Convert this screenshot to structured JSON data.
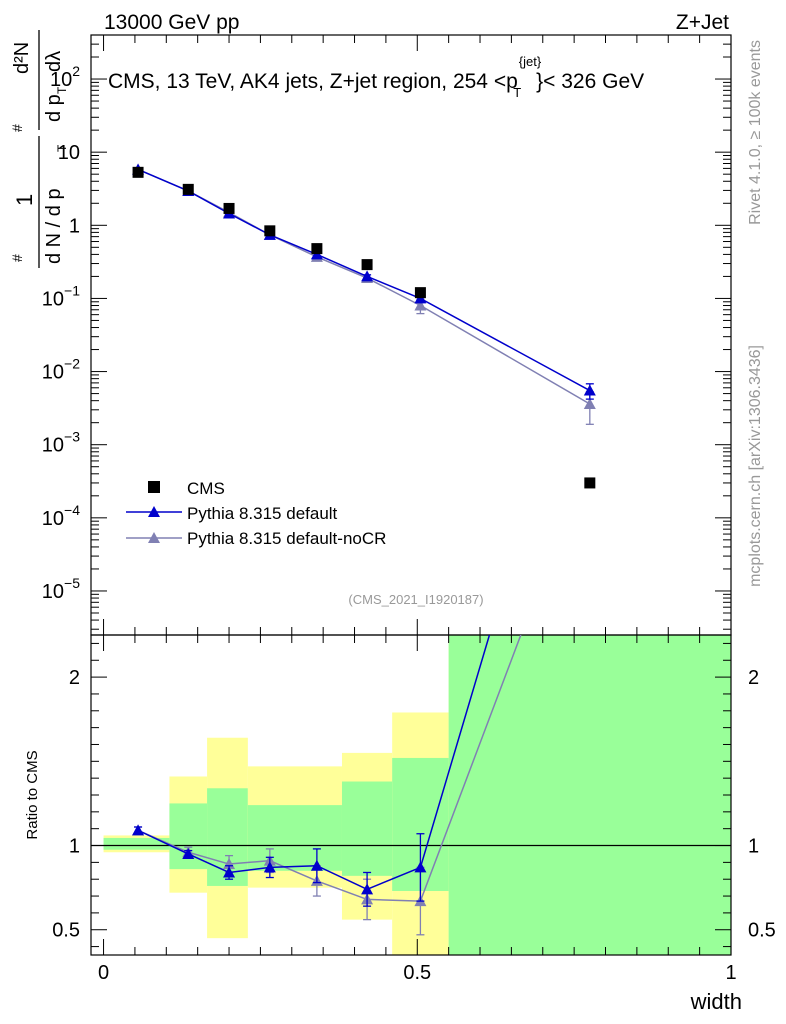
{
  "header": {
    "left": "13000 GeV pp",
    "right": "Z+Jet"
  },
  "side_labels": {
    "rivet": "Rivet 4.1.0, ≥ 100k events",
    "mcplots": "mcplots.cern.ch [arXiv:1306.3436]"
  },
  "chart_data": [
    {
      "type": "line",
      "panel": "main",
      "title_parts": [
        "CMS, 13 TeV, AK4 jets, Z+jet region, 254 <p",
        "{jet}",
        "T",
        "}< 326 GeV"
      ],
      "ylabel": "1/dN/dp_T d^2N/dp_T dλ",
      "ylabel_parts": {
        "one": "1",
        "denom": "d N / d p",
        "num": "d²N",
        "den2": "d p",
        "dlam": "dλ",
        "sub": "T",
        "hash": "#"
      },
      "yscale": "log",
      "ylim": [
        2.5e-06,
        400
      ],
      "xlim": [
        -0.02,
        1.0
      ],
      "y_ticks": [
        {
          "v": 100,
          "base": "10",
          "exp": "2"
        },
        {
          "v": 10,
          "base": "10",
          "exp": ""
        },
        {
          "v": 1,
          "base": "1",
          "exp": ""
        },
        {
          "v": 0.1,
          "base": "10",
          "exp": "−1"
        },
        {
          "v": 0.01,
          "base": "10",
          "exp": "−2"
        },
        {
          "v": 0.001,
          "base": "10",
          "exp": "−3"
        },
        {
          "v": 0.0001,
          "base": "10",
          "exp": "−4"
        },
        {
          "v": 1e-05,
          "base": "10",
          "exp": "−5"
        }
      ],
      "series": [
        {
          "name": "CMS",
          "kind": "data",
          "color": "#000000",
          "x": [
            0.055,
            0.135,
            0.2,
            0.265,
            0.34,
            0.42,
            0.505,
            0.775
          ],
          "y": [
            5.3,
            3.1,
            1.7,
            0.84,
            0.48,
            0.29,
            0.12,
            0.0003
          ]
        },
        {
          "name": "Pythia 8.315 default",
          "kind": "mc",
          "color": "#0000cc",
          "x": [
            0.055,
            0.135,
            0.2,
            0.265,
            0.34,
            0.42,
            0.505,
            0.775
          ],
          "y": [
            5.8,
            2.95,
            1.45,
            0.74,
            0.4,
            0.2,
            0.1,
            0.0055
          ],
          "err_lo": [
            5.7,
            2.9,
            1.42,
            0.72,
            0.38,
            0.19,
            0.088,
            0.0042
          ],
          "err_hi": [
            5.9,
            3.0,
            1.48,
            0.76,
            0.42,
            0.21,
            0.112,
            0.0068
          ]
        },
        {
          "name": "Pythia 8.315 default-noCR",
          "kind": "mc",
          "color": "#8080b3",
          "x": [
            0.055,
            0.135,
            0.2,
            0.265,
            0.34,
            0.42,
            0.505,
            0.775
          ],
          "y": [
            5.8,
            2.95,
            1.5,
            0.74,
            0.37,
            0.19,
            0.08,
            0.0036
          ],
          "err_lo": [
            5.7,
            2.9,
            1.46,
            0.72,
            0.35,
            0.17,
            0.062,
            0.0019
          ],
          "err_hi": [
            5.9,
            3.0,
            1.54,
            0.76,
            0.39,
            0.21,
            0.098,
            0.0053
          ]
        }
      ],
      "legend": [
        "CMS",
        "Pythia 8.315 default",
        "Pythia 8.315 default-noCR"
      ],
      "legend_position": "bottom-left",
      "watermark": "(CMS_2021_I1920187)"
    },
    {
      "type": "line",
      "panel": "ratio",
      "ylabel": "Ratio to CMS",
      "xlabel": "width",
      "ylim": [
        0.35,
        2.25
      ],
      "xlim": [
        -0.02,
        1.0
      ],
      "y_ticks": [
        {
          "v": 0.5,
          "label": "0.5"
        },
        {
          "v": 1,
          "label": "1"
        },
        {
          "v": 2,
          "label": "2"
        }
      ],
      "x_ticks": [
        {
          "v": 0,
          "label": "0"
        },
        {
          "v": 0.5,
          "label": "0.5"
        },
        {
          "v": 1,
          "label": "1"
        }
      ],
      "bands": [
        {
          "x0": 0.0,
          "x1": 0.105,
          "y_lo": 0.96,
          "y_hi": 1.06,
          "g_lo": 0.975,
          "g_hi": 1.045
        },
        {
          "x0": 0.105,
          "x1": 0.165,
          "y_lo": 0.72,
          "y_hi": 1.41,
          "g_lo": 0.86,
          "g_hi": 1.25
        },
        {
          "x0": 0.165,
          "x1": 0.23,
          "y_lo": 0.45,
          "y_hi": 1.64,
          "g_lo": 0.76,
          "g_hi": 1.34
        },
        {
          "x0": 0.23,
          "x1": 0.38,
          "y_lo": 0.75,
          "y_hi": 1.47,
          "g_lo": 0.85,
          "g_hi": 1.24
        },
        {
          "x0": 0.38,
          "x1": 0.46,
          "y_lo": 0.56,
          "y_hi": 1.55,
          "g_lo": 0.82,
          "g_hi": 1.38
        },
        {
          "x0": 0.46,
          "x1": 0.55,
          "y_lo": 0.35,
          "y_hi": 1.79,
          "g_lo": 0.73,
          "g_hi": 1.52
        },
        {
          "x0": 0.55,
          "x1": 1.0,
          "y_lo": 0.35,
          "y_hi": 2.25,
          "g_lo": 0.35,
          "g_hi": 2.25
        }
      ],
      "series": [
        {
          "name": "Pythia 8.315 default",
          "color": "#0000cc",
          "x": [
            0.055,
            0.135,
            0.2,
            0.265,
            0.34,
            0.42,
            0.505,
            0.615
          ],
          "y": [
            1.09,
            0.95,
            0.84,
            0.87,
            0.88,
            0.74,
            0.87,
            2.25
          ],
          "err_lo": [
            1.07,
            0.93,
            0.8,
            0.81,
            0.78,
            0.64,
            0.67,
            2.25
          ],
          "err_hi": [
            1.11,
            0.97,
            0.88,
            0.93,
            0.98,
            0.84,
            1.07,
            2.25
          ],
          "markers": 7
        },
        {
          "name": "Pythia 8.315 default-noCR",
          "color": "#8080b3",
          "x": [
            0.055,
            0.135,
            0.2,
            0.265,
            0.34,
            0.42,
            0.505,
            0.665
          ],
          "y": [
            1.09,
            0.96,
            0.89,
            0.91,
            0.79,
            0.68,
            0.67,
            2.25
          ],
          "err_lo": [
            1.07,
            0.93,
            0.84,
            0.84,
            0.7,
            0.56,
            0.47,
            2.25
          ],
          "err_hi": [
            1.11,
            0.99,
            0.94,
            0.98,
            0.88,
            0.8,
            0.87,
            2.25
          ],
          "markers": 7
        }
      ]
    }
  ]
}
